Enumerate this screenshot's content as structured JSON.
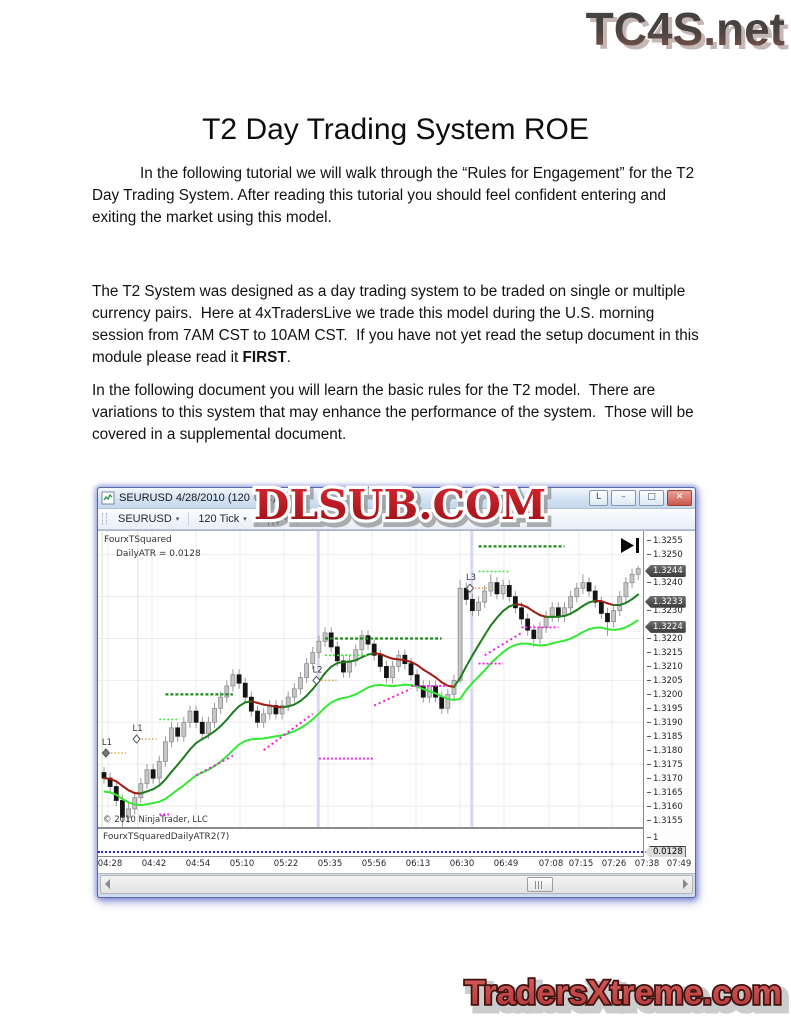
{
  "page": {
    "top_logo": "TC4S.net",
    "title": "T2 Day Trading System ROE",
    "para1": "In the following tutorial we will walk through the “Rules for Engagement” for the T2 Day Trading System. After reading this tutorial you should feel confident entering and exiting the market using this model.",
    "para2_a": "The T2 System was designed as a day trading system to be traded on single or multiple currency pairs.  Here at 4xTradersLive we trade this model during the U.S. morning session from 7AM CST to 10AM CST.  If you have not yet read the setup document in this module please read it ",
    "para2_bold": "FIRST",
    "para2_tail": ".",
    "para3": "In the following document you will learn the basic rules for the T2 model.  There are variations to this system that may enhance the performance of the system.  Those will be covered in a supplemental document.",
    "watermark": "DLSUB.COM",
    "bottom_logo": "TradersXtreme.com"
  },
  "window": {
    "title": "SEURUSD  4/28/2010 (120 Tick)",
    "buttons": {
      "link": "L",
      "minimize": "–",
      "restore": "□",
      "close": "✕"
    },
    "toolbar": {
      "instrument": "SEURUSD",
      "interval": "120 Tick",
      "caret": "▾",
      "pen_icon_glyph": "✎"
    },
    "indicator_line1": "FourxTSquared",
    "indicator_line2": "DailyATR = 0.0128",
    "copyright": "© 2010 NinjaTrader, LLC",
    "lower_panel_label": "FourxTSquaredDailyATR2(7)",
    "lower_panel_tick": "1",
    "lower_panel_value": "0.0128"
  },
  "chart_data": {
    "type": "candlestick",
    "symbol": "EURUSD",
    "date": "4/28/2010",
    "interval": "120 Tick",
    "ylim": [
      1.31525,
      1.32585
    ],
    "grid_prices": [
      1.316,
      1.3175,
      1.319,
      1.3205,
      1.322,
      1.3235,
      1.325
    ],
    "price_ticks": [
      "1.3255",
      "1.3250",
      "1.3240",
      "1.3230",
      "1.3220",
      "1.3215",
      "1.3210",
      "1.3205",
      "1.3200",
      "1.3195",
      "1.3190",
      "1.3185",
      "1.3180",
      "1.3175",
      "1.3170",
      "1.3165",
      "1.3160",
      "1.3155"
    ],
    "price_tags": [
      "1.3244",
      "1.3233",
      "1.3224"
    ],
    "time_ticks": [
      "04:28",
      "04:42",
      "04:54",
      "05:10",
      "05:22",
      "05:35",
      "05:56",
      "06:13",
      "06:30",
      "06:49",
      "07:08",
      "07:15",
      "07:26",
      "07:38",
      "07:49"
    ],
    "candles": [
      [
        1.3172,
        1.3174,
        1.3168,
        1.317
      ],
      [
        1.317,
        1.3172,
        1.3165,
        1.3167
      ],
      [
        1.3167,
        1.3169,
        1.316,
        1.3162
      ],
      [
        1.3162,
        1.3164,
        1.3152,
        1.3156
      ],
      [
        1.3156,
        1.3161,
        1.3154,
        1.3159
      ],
      [
        1.3159,
        1.3165,
        1.3157,
        1.3163
      ],
      [
        1.3163,
        1.317,
        1.3161,
        1.3168
      ],
      [
        1.3168,
        1.3175,
        1.3166,
        1.3173
      ],
      [
        1.3173,
        1.3175,
        1.3168,
        1.317
      ],
      [
        1.317,
        1.3178,
        1.3168,
        1.3176
      ],
      [
        1.3176,
        1.3185,
        1.3174,
        1.3183
      ],
      [
        1.3183,
        1.319,
        1.3181,
        1.3188
      ],
      [
        1.3188,
        1.319,
        1.3183,
        1.3185
      ],
      [
        1.3185,
        1.3192,
        1.3183,
        1.319
      ],
      [
        1.319,
        1.3196,
        1.3188,
        1.3194
      ],
      [
        1.3194,
        1.3196,
        1.3188,
        1.319
      ],
      [
        1.319,
        1.3192,
        1.3184,
        1.3186
      ],
      [
        1.3186,
        1.3192,
        1.3184,
        1.319
      ],
      [
        1.319,
        1.3197,
        1.3188,
        1.3195
      ],
      [
        1.3195,
        1.3201,
        1.3193,
        1.3199
      ],
      [
        1.3199,
        1.3205,
        1.3197,
        1.3203
      ],
      [
        1.3203,
        1.3209,
        1.3201,
        1.3207
      ],
      [
        1.3207,
        1.3209,
        1.3202,
        1.3204
      ],
      [
        1.3204,
        1.3206,
        1.3197,
        1.3199
      ],
      [
        1.3199,
        1.3201,
        1.3192,
        1.3194
      ],
      [
        1.3194,
        1.3196,
        1.3188,
        1.319
      ],
      [
        1.319,
        1.3195,
        1.3188,
        1.3193
      ],
      [
        1.3193,
        1.3198,
        1.3191,
        1.3196
      ],
      [
        1.3196,
        1.3198,
        1.3191,
        1.3193
      ],
      [
        1.3193,
        1.3198,
        1.3191,
        1.3196
      ],
      [
        1.3196,
        1.3201,
        1.3194,
        1.3199
      ],
      [
        1.3199,
        1.3204,
        1.3197,
        1.3202
      ],
      [
        1.3202,
        1.3208,
        1.32,
        1.3206
      ],
      [
        1.3206,
        1.3213,
        1.3204,
        1.3211
      ],
      [
        1.3211,
        1.3217,
        1.3209,
        1.3215
      ],
      [
        1.3215,
        1.3221,
        1.3213,
        1.3219
      ],
      [
        1.3219,
        1.3224,
        1.3217,
        1.3222
      ],
      [
        1.3222,
        1.3224,
        1.3215,
        1.3217
      ],
      [
        1.3217,
        1.3219,
        1.321,
        1.3212
      ],
      [
        1.3212,
        1.3214,
        1.3206,
        1.3208
      ],
      [
        1.3208,
        1.3214,
        1.3206,
        1.3212
      ],
      [
        1.3212,
        1.3218,
        1.321,
        1.3216
      ],
      [
        1.3216,
        1.3223,
        1.3214,
        1.3221
      ],
      [
        1.3221,
        1.3223,
        1.3216,
        1.3218
      ],
      [
        1.3218,
        1.322,
        1.3212,
        1.3214
      ],
      [
        1.3214,
        1.3216,
        1.3208,
        1.321
      ],
      [
        1.321,
        1.3212,
        1.3204,
        1.3206
      ],
      [
        1.3206,
        1.3212,
        1.3204,
        1.321
      ],
      [
        1.321,
        1.3216,
        1.3208,
        1.3214
      ],
      [
        1.3214,
        1.3216,
        1.3209,
        1.3211
      ],
      [
        1.3211,
        1.3213,
        1.3205,
        1.3207
      ],
      [
        1.3207,
        1.3209,
        1.3201,
        1.3203
      ],
      [
        1.3203,
        1.3205,
        1.3197,
        1.3199
      ],
      [
        1.3199,
        1.3205,
        1.3197,
        1.3203
      ],
      [
        1.3203,
        1.3205,
        1.3197,
        1.3199
      ],
      [
        1.3199,
        1.3201,
        1.3193,
        1.3195
      ],
      [
        1.3195,
        1.3202,
        1.3193,
        1.32
      ],
      [
        1.32,
        1.3207,
        1.3198,
        1.3205
      ],
      [
        1.3205,
        1.3241,
        1.3204,
        1.3238
      ],
      [
        1.3238,
        1.324,
        1.3232,
        1.3234
      ],
      [
        1.3234,
        1.3236,
        1.3228,
        1.323
      ],
      [
        1.323,
        1.3235,
        1.3228,
        1.3233
      ],
      [
        1.3233,
        1.3239,
        1.3231,
        1.3237
      ],
      [
        1.3237,
        1.3243,
        1.3235,
        1.324
      ],
      [
        1.324,
        1.3242,
        1.3234,
        1.3236
      ],
      [
        1.3236,
        1.3241,
        1.3234,
        1.3239
      ],
      [
        1.3239,
        1.3241,
        1.3233,
        1.3235
      ],
      [
        1.3235,
        1.3237,
        1.3229,
        1.3231
      ],
      [
        1.3231,
        1.3233,
        1.3225,
        1.3227
      ],
      [
        1.3227,
        1.3229,
        1.3221,
        1.3223
      ],
      [
        1.3223,
        1.3225,
        1.3217,
        1.322
      ],
      [
        1.322,
        1.3226,
        1.3218,
        1.3224
      ],
      [
        1.3224,
        1.323,
        1.3222,
        1.3228
      ],
      [
        1.3228,
        1.3233,
        1.3226,
        1.3231
      ],
      [
        1.3231,
        1.3233,
        1.3226,
        1.3228
      ],
      [
        1.3228,
        1.3233,
        1.3226,
        1.3231
      ],
      [
        1.3231,
        1.3237,
        1.3229,
        1.3235
      ],
      [
        1.3235,
        1.324,
        1.3233,
        1.3238
      ],
      [
        1.3238,
        1.3243,
        1.3236,
        1.324
      ],
      [
        1.324,
        1.3242,
        1.3235,
        1.3237
      ],
      [
        1.3237,
        1.3239,
        1.3231,
        1.3233
      ],
      [
        1.3233,
        1.3235,
        1.3227,
        1.3229
      ],
      [
        1.3229,
        1.3231,
        1.3221,
        1.3226
      ],
      [
        1.3226,
        1.3232,
        1.3224,
        1.323
      ],
      [
        1.323,
        1.3237,
        1.3228,
        1.3235
      ],
      [
        1.3235,
        1.3242,
        1.3233,
        1.324
      ],
      [
        1.324,
        1.3245,
        1.3238,
        1.3243
      ],
      [
        1.3243,
        1.3246,
        1.3241,
        1.3245
      ]
    ],
    "levels": [
      {
        "c": "g",
        "i1": 10,
        "i2": 21,
        "p": 1.32
      },
      {
        "c": "g",
        "i1": 36,
        "i2": 55,
        "p": 1.322
      },
      {
        "c": "g",
        "i1": 61,
        "i2": 75,
        "p": 1.3253
      },
      {
        "c": "lg",
        "i1": 9,
        "i2": 12,
        "p": 1.3191
      },
      {
        "c": "lg",
        "i1": 36,
        "i2": 43,
        "p": 1.3214
      },
      {
        "c": "lg",
        "i1": 61,
        "i2": 66,
        "p": 1.3244
      },
      {
        "c": "m",
        "i1": 9,
        "i2": 11,
        "p": 1.3157
      },
      {
        "c": "m",
        "i1": 35,
        "i2": 44,
        "p": 1.3177
      },
      {
        "c": "m",
        "i1": 50,
        "i2": 56,
        "p": 1.3203
      },
      {
        "c": "m",
        "i1": 61,
        "i2": 65,
        "p": 1.3211
      },
      {
        "c": "m",
        "i1": 68,
        "i2": 74,
        "p": 1.3224
      }
    ],
    "trails": [
      {
        "i1": 15,
        "i2": 21,
        "p1": 1.3171,
        "p2": 1.3178
      },
      {
        "i1": 26,
        "i2": 34,
        "p1": 1.318,
        "p2": 1.3193
      },
      {
        "i1": 44,
        "i2": 50,
        "p1": 1.3196,
        "p2": 1.3202
      },
      {
        "i1": 62,
        "i2": 68,
        "p1": 1.3214,
        "p2": 1.3222
      }
    ],
    "markers": [
      {
        "label": "L1",
        "i": 0.3,
        "p": 1.3179,
        "filled": true
      },
      {
        "label": "L1",
        "i": 5.3,
        "p": 1.3184,
        "filled": false
      },
      {
        "label": "L2",
        "i": 34.6,
        "p": 1.3205,
        "filled": false
      },
      {
        "label": "L3",
        "i": 59.6,
        "p": 1.3238,
        "filled": false
      }
    ],
    "sessions": [
      {
        "i": -0.3,
        "color": "#cdeccd",
        "w": 1
      },
      {
        "i": 5.5,
        "color": "#cdeccd",
        "w": 1
      },
      {
        "i": 34.9,
        "color": "#d8d8f4",
        "w": 3
      },
      {
        "i": 59.9,
        "color": "#d8d8f4",
        "w": 3
      }
    ],
    "colors": {
      "up_body": "#c6c6c6",
      "up_border": "#8e8e8e",
      "down_body": "#141414",
      "wick": "#9a9a9a",
      "ma_slow_up": "#1e7d1e",
      "ma_slow_down": "#a31a12",
      "ma_fast": "#35e835",
      "level_g": "#1d8a1d",
      "level_lg": "#3fe23f",
      "level_m": "#ef1fdf",
      "marker_tail": "#e8a43c",
      "session_green": "#cdeccd",
      "session_blue": "#d8d8f4",
      "atr_line": "#2230c8",
      "watermark_red": "#c3101c",
      "logo_red": "#c94b4b"
    }
  }
}
